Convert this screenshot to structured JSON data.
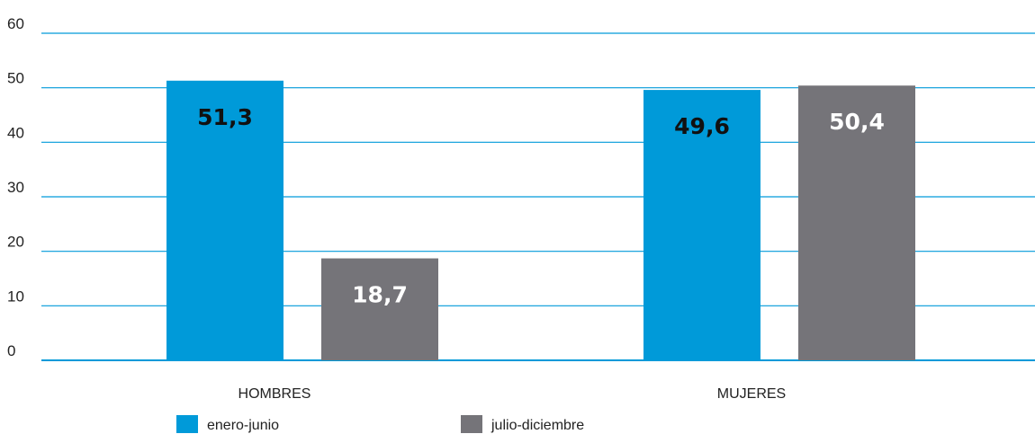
{
  "chart_data": {
    "type": "bar",
    "title": "",
    "xlabel": "",
    "ylabel": "",
    "categories": [
      "HOMBRES",
      "MUJERES"
    ],
    "series": [
      {
        "name": "enero-junio",
        "values": [
          51.3,
          49.6
        ],
        "labels": [
          "51,3",
          "49,6"
        ],
        "color": "#009ad9",
        "label_color": "#111111"
      },
      {
        "name": "julio-diciembre",
        "values": [
          18.7,
          50.4
        ],
        "labels": [
          "18,7",
          "50,4"
        ],
        "color": "#757479",
        "label_color": "#ffffff"
      }
    ],
    "ylim": [
      0,
      60
    ],
    "yticks": [
      0,
      10,
      20,
      30,
      40,
      50,
      60
    ],
    "grid": true,
    "grid_color": "#009ad9",
    "legend_position": "bottom-left"
  }
}
